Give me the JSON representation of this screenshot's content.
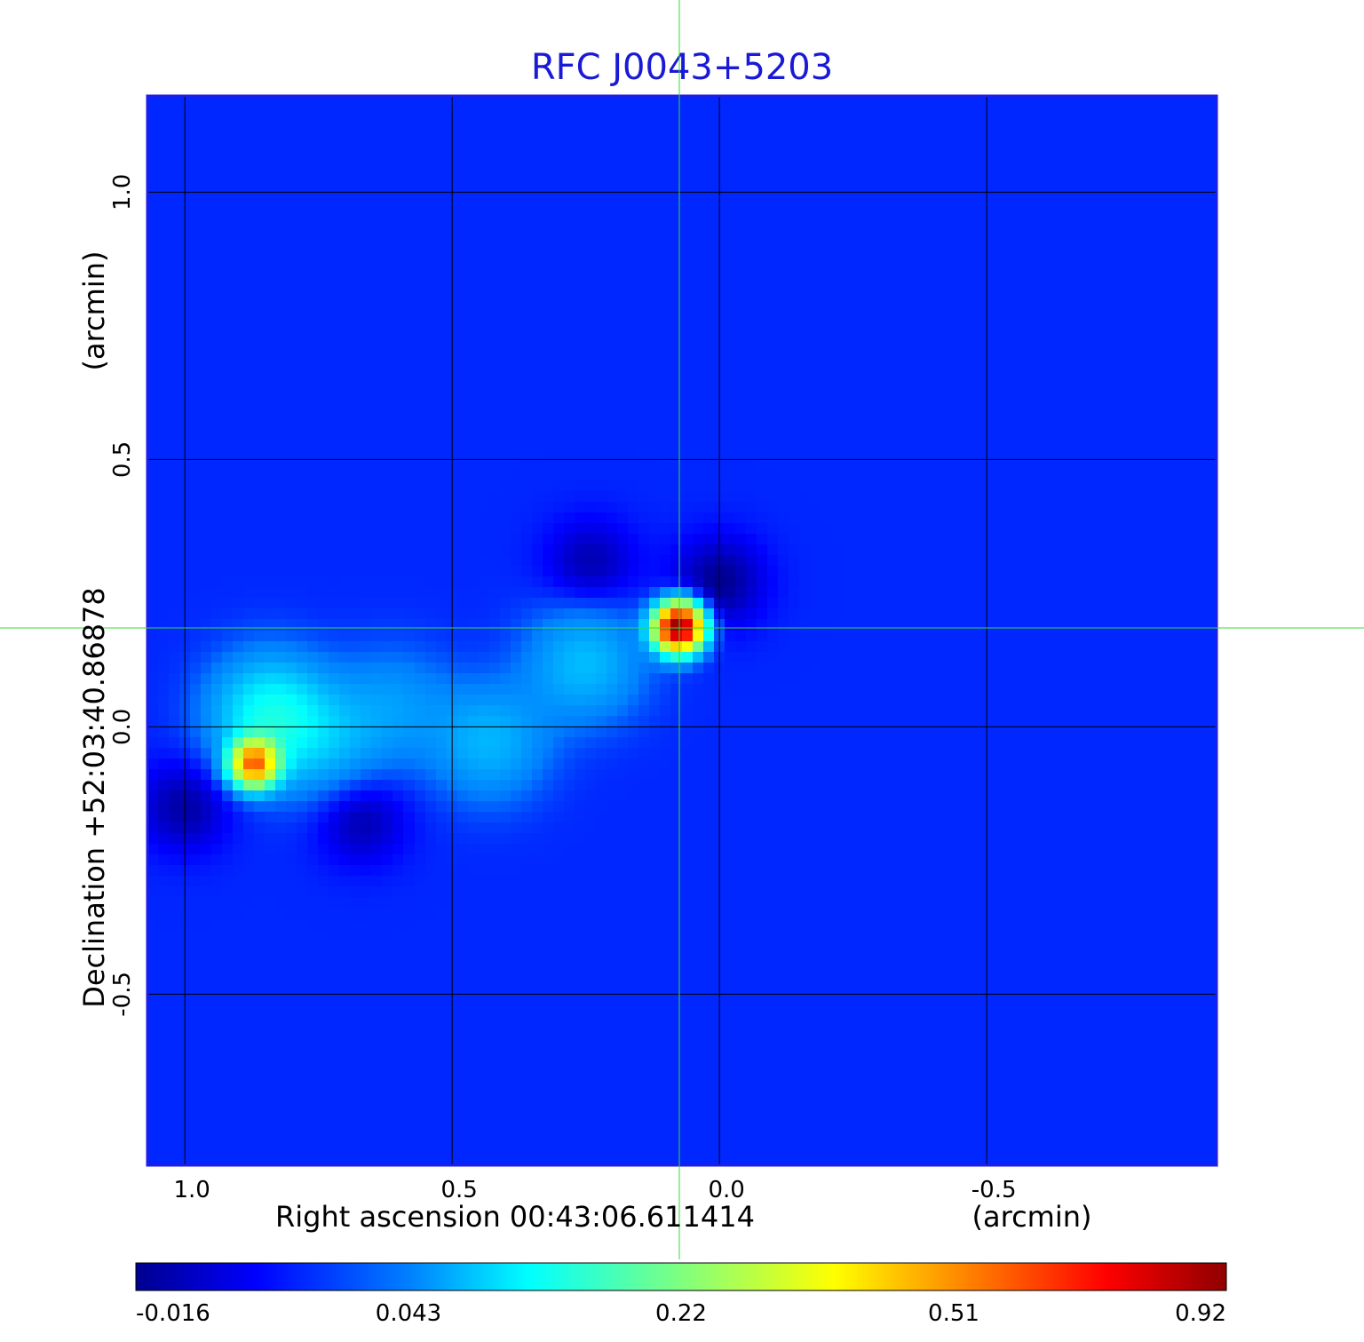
{
  "chart_data": {
    "type": "heatmap",
    "title": "RFC J0043+5203",
    "xlabel": "Right ascension  00:43:06.611414",
    "xunit": "(arcmin)",
    "ylabel": "Declination  +52:03:40.86878",
    "yunit": "(arcmin)",
    "xlim": [
      1.07,
      -0.93
    ],
    "ylim": [
      -0.82,
      1.18
    ],
    "x_ticks": [
      1.0,
      0.5,
      0.0,
      -0.5
    ],
    "x_tick_labels": [
      "1.0",
      "0.5",
      "0.0",
      "-0.5"
    ],
    "y_ticks": [
      1.0,
      0.5,
      0.0,
      -0.5
    ],
    "y_tick_labels": [
      "1.0",
      "0.5",
      "0.0",
      "-0.5"
    ],
    "grid": true,
    "grid_color": "#000000",
    "crosshair": {
      "x": 0.075,
      "y": 0.185,
      "color": "#33dd33"
    },
    "colormap": "jet",
    "colorbar": {
      "position": "bottom",
      "tick_labels": [
        "-0.016",
        "0.043",
        "0.22",
        "0.51",
        "0.92"
      ],
      "tick_fractions": [
        0.0,
        0.25,
        0.5,
        0.75,
        1.0
      ],
      "min": -0.016,
      "max": 0.92
    },
    "background_level": 0.02,
    "components": [
      {
        "x": 0.075,
        "y": 0.185,
        "peak": 0.92
      },
      {
        "x": 0.87,
        "y": -0.07,
        "peak": 0.55
      },
      {
        "x": 0.84,
        "y": 0.02,
        "peak": 0.13
      },
      {
        "x": 0.25,
        "y": 0.12,
        "peak": 0.08
      },
      {
        "x": 0.43,
        "y": -0.03,
        "peak": 0.075
      },
      {
        "x": 0.61,
        "y": 0.04,
        "peak": 0.055
      },
      {
        "x": 0.73,
        "y": -0.04,
        "peak": 0.06
      }
    ],
    "negative_features": [
      {
        "x": 0.0,
        "y": 0.27,
        "value": -0.016
      },
      {
        "x": 0.24,
        "y": 0.3,
        "value": -0.01
      },
      {
        "x": 0.67,
        "y": -0.17,
        "value": -0.012
      },
      {
        "x": 1.0,
        "y": -0.15,
        "value": -0.012
      }
    ],
    "colors": {
      "title": "#1a1ad6",
      "frame": "#1e1ee6",
      "crosshair": "#33dd33"
    }
  }
}
